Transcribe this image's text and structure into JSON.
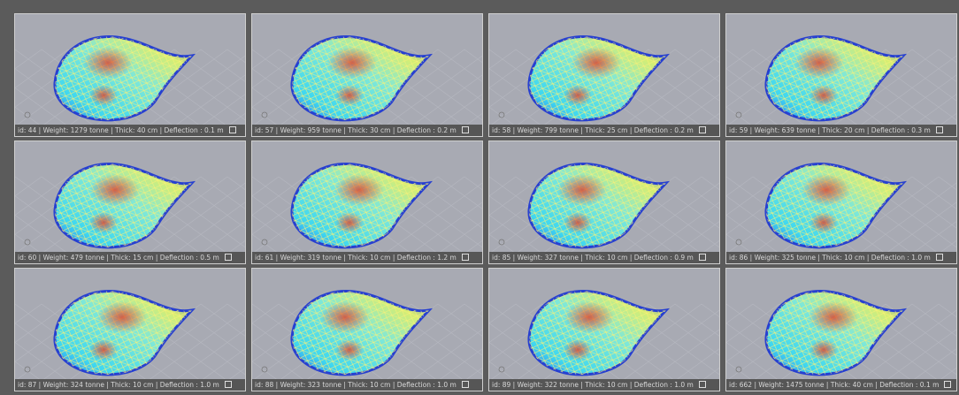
{
  "cells": [
    {
      "caption": "id: 44 | Weight: 1279 tonne | Thick: 40 cm | Deflection : 0.1 m"
    },
    {
      "caption": "id: 57 | Weight: 959 tonne | Thick: 30 cm | Deflection : 0.2 m"
    },
    {
      "caption": "id: 58 | Weight: 799 tonne | Thick: 25 cm | Deflection : 0.2 m"
    },
    {
      "caption": "id: 59 | Weight: 639 tonne | Thick: 20 cm | Deflection : 0.3 m"
    },
    {
      "caption": "id: 60 | Weight: 479 tonne | Thick: 15 cm | Deflection : 0.5 m"
    },
    {
      "caption": "id: 61 | Weight: 319 tonne | Thick: 10 cm | Deflection : 1.2 m"
    },
    {
      "caption": "id: 85 | Weight: 327 tonne | Thick: 10 cm | Deflection : 0.9 m"
    },
    {
      "caption": "id: 86 | Weight: 325 tonne | Thick: 10 cm | Deflection : 1.0 m"
    },
    {
      "caption": "id: 87 | Weight: 324 tonne | Thick: 10 cm | Deflection : 1.0 m"
    },
    {
      "caption": "id: 88 | Weight: 323 tonne | Thick: 10 cm | Deflection : 1.0 m"
    },
    {
      "caption": "id: 89 | Weight: 322 tonne | Thick: 10 cm | Deflection : 1.0 m"
    },
    {
      "caption": "id: 662 | Weight: 1475 tonne | Thick: 40 cm | Deflection : 0.1 m"
    }
  ]
}
